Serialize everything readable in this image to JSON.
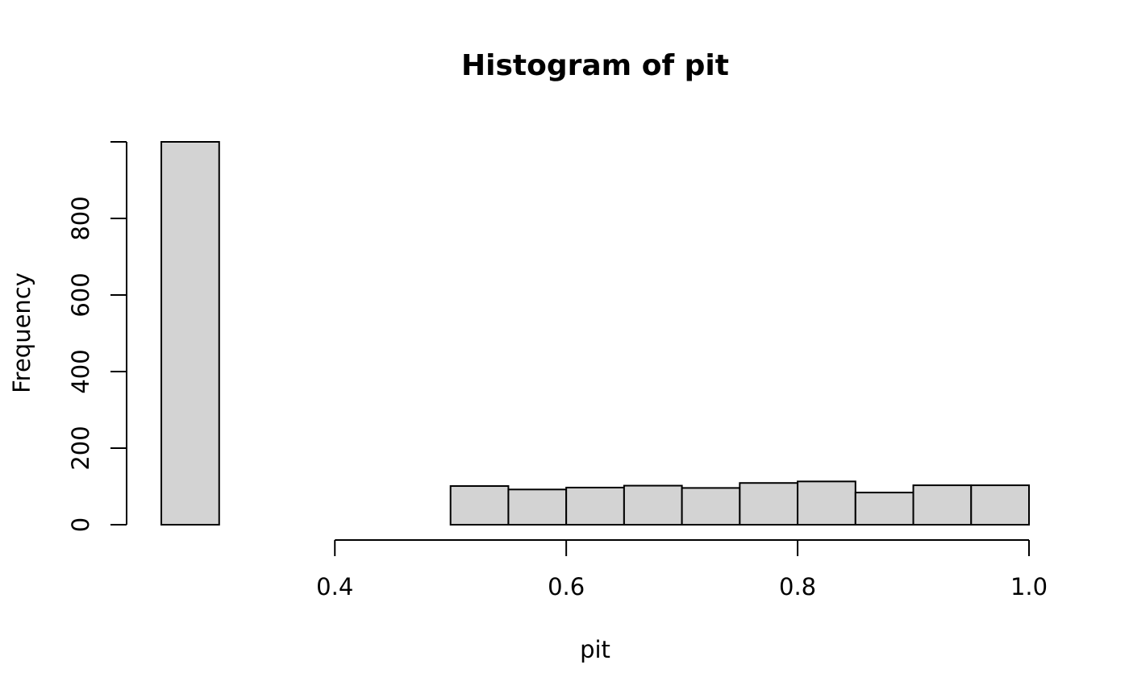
{
  "chart_data": {
    "type": "bar",
    "title": "Histogram of pit",
    "xlabel": "pit",
    "ylabel": "Frequency",
    "bin_edges": [
      0.25,
      0.3,
      0.35,
      0.4,
      0.45,
      0.5,
      0.55,
      0.6,
      0.65,
      0.7,
      0.75,
      0.8,
      0.85,
      0.9,
      0.95,
      1.0
    ],
    "values": [
      1000,
      0,
      0,
      0,
      0,
      101,
      92,
      97,
      102,
      96,
      109,
      113,
      84,
      103,
      103
    ],
    "xlim": [
      0.22,
      1.0
    ],
    "ylim": [
      0,
      1000
    ],
    "x_ticks": [
      0.4,
      0.6,
      0.8,
      1.0
    ],
    "x_tick_labels": [
      "0.4",
      "0.6",
      "0.8",
      "1.0"
    ],
    "y_ticks": [
      0,
      200,
      400,
      600,
      800,
      1000
    ],
    "y_tick_labels": [
      "0",
      "200",
      "400",
      "600",
      "800",
      ""
    ],
    "bar_fill": "#d3d3d3",
    "bar_stroke": "#000000",
    "grid": false
  }
}
